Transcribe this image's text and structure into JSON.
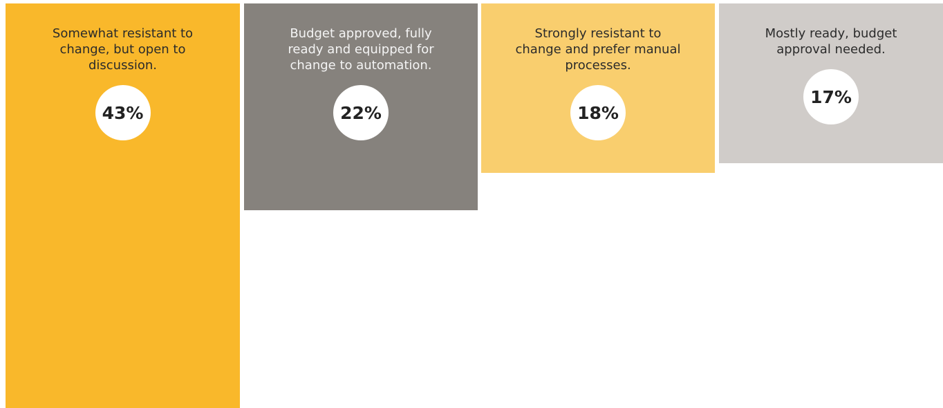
{
  "chart_data": {
    "type": "bar",
    "categories": [
      "Somewhat resistant to change, but open to discussion.",
      "Budget approved, fully ready and equipped for change to automation.",
      "Strongly resistant to change and prefer manual processes.",
      "Mostly ready, budget approval needed."
    ],
    "values": [
      43,
      22,
      18,
      17
    ],
    "value_labels": [
      "43%",
      "22%",
      "18%",
      "17%"
    ],
    "colors": [
      "#f9b82b",
      "#86827d",
      "#f9ce6e",
      "#d0ccc9"
    ]
  }
}
